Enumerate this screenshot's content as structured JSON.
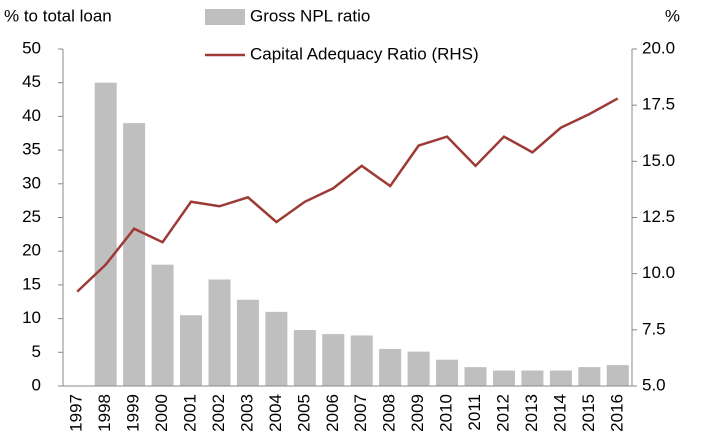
{
  "chart_data": {
    "type": "bar-line",
    "ylabel": "% to total loan",
    "y2label": "%",
    "categories": [
      "1997",
      "1998",
      "1999",
      "2000",
      "2001",
      "2002",
      "2003",
      "2004",
      "2005",
      "2006",
      "2007",
      "2008",
      "2009",
      "2010",
      "2011",
      "2012",
      "2013",
      "2014",
      "2015",
      "2016"
    ],
    "series": [
      {
        "name": "Gross NPL ratio",
        "type": "bar",
        "color": "#bfbfbf",
        "axis": "y",
        "values": [
          null,
          45,
          39,
          18,
          10.5,
          15.8,
          12.8,
          11,
          8.3,
          7.7,
          7.5,
          5.5,
          5.1,
          3.9,
          2.8,
          2.3,
          2.3,
          2.3,
          2.8,
          3.1
        ]
      },
      {
        "name": "Capital Adequacy Ratio (RHS)",
        "type": "line",
        "color": "#9e3a35",
        "axis": "y2",
        "values": [
          9.2,
          10.4,
          12.0,
          11.4,
          13.2,
          13.0,
          13.4,
          12.3,
          13.2,
          13.8,
          14.8,
          13.9,
          15.7,
          16.1,
          14.8,
          16.1,
          15.4,
          16.5,
          17.1,
          17.8
        ]
      }
    ],
    "ylim": [
      0,
      50
    ],
    "yticks": [
      0,
      5,
      10,
      15,
      20,
      25,
      30,
      35,
      40,
      45,
      50
    ],
    "y2lim": [
      5,
      20
    ],
    "y2ticks": [
      {
        "value": 5,
        "label": "5.0"
      },
      7.5,
      {
        "value": 10,
        "label": "10.0"
      },
      12.5,
      {
        "value": 15,
        "label": "15.0"
      },
      17.5,
      {
        "value": 20,
        "label": "20.0"
      }
    ],
    "grid": false
  }
}
